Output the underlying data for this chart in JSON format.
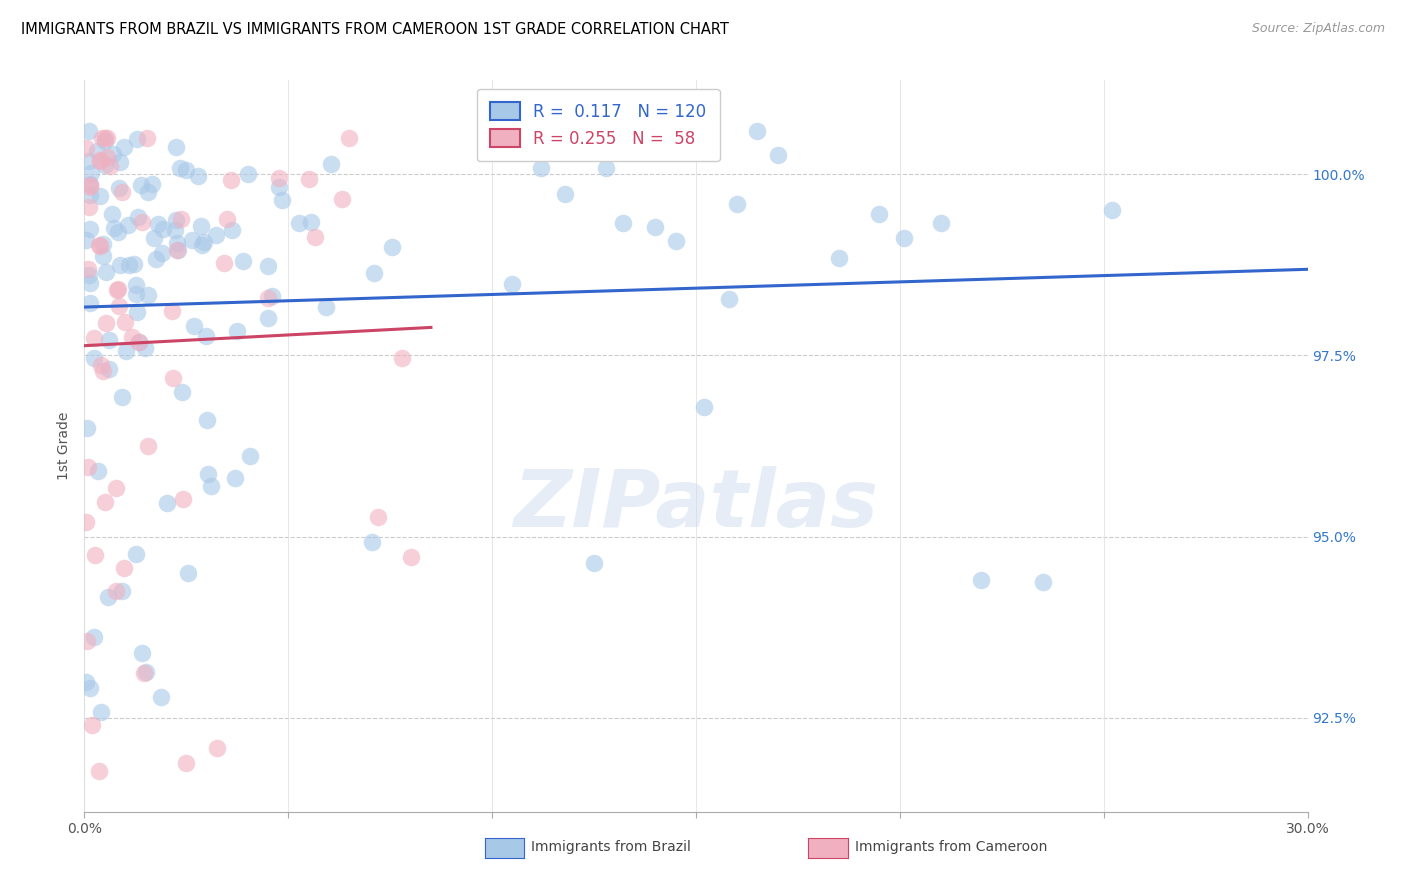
{
  "title": "IMMIGRANTS FROM BRAZIL VS IMMIGRANTS FROM CAMEROON 1ST GRADE CORRELATION CHART",
  "source": "Source: ZipAtlas.com",
  "ylabel": "1st Grade",
  "xlim": [
    0.0,
    30.0
  ],
  "ylim": [
    91.2,
    101.3
  ],
  "yticks": [
    92.5,
    95.0,
    97.5,
    100.0
  ],
  "ytick_labels": [
    "92.5%",
    "95.0%",
    "97.5%",
    "100.0%"
  ],
  "xticks": [
    0.0,
    5.0,
    10.0,
    15.0,
    20.0,
    25.0,
    30.0
  ],
  "xtick_labels": [
    "0.0%",
    "",
    "",
    "",
    "",
    "",
    "30.0%"
  ],
  "brazil_R": 0.117,
  "brazil_N": 120,
  "cameroon_R": 0.255,
  "cameroon_N": 58,
  "brazil_color": "#a8c8e8",
  "cameroon_color": "#f0b0c0",
  "brazil_line_color": "#3366cc",
  "cameroon_line_color": "#cc4466",
  "legend_label_brazil": "Immigrants from Brazil",
  "legend_label_cameroon": "Immigrants from Cameroon",
  "watermark": "ZIPatlas",
  "title_fontsize": 10.5,
  "right_tick_color": "#3377cc"
}
